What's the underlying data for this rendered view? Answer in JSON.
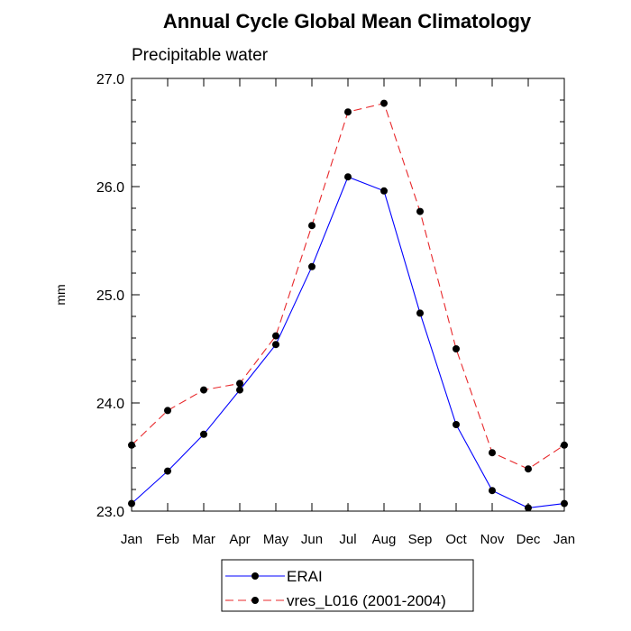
{
  "chart_data": {
    "type": "line",
    "title": "Annual Cycle Global Mean Climatology",
    "subtitle": "Precipitable water",
    "ylabel": "mm",
    "xlabel": "",
    "categories": [
      "Jan",
      "Feb",
      "Mar",
      "Apr",
      "May",
      "Jun",
      "Jul",
      "Aug",
      "Sep",
      "Oct",
      "Nov",
      "Dec",
      "Jan"
    ],
    "ylim": [
      23.0,
      27.0
    ],
    "yticks": [
      "23.0",
      "24.0",
      "25.0",
      "26.0",
      "27.0"
    ],
    "grid": false,
    "legend_position": "bottom-center",
    "series": [
      {
        "name": "ERAI",
        "color": "#0000ff",
        "line_style": "solid",
        "marker": "filled-circle",
        "values": [
          23.07,
          23.37,
          23.71,
          24.12,
          24.54,
          25.26,
          26.09,
          25.96,
          24.83,
          23.8,
          23.19,
          23.03,
          23.07
        ]
      },
      {
        "name": "vres_L016 (2001-2004)",
        "color": "#e8282b",
        "line_style": "dashed",
        "marker": "filled-circle",
        "values": [
          23.61,
          23.93,
          24.12,
          24.18,
          24.62,
          25.64,
          26.69,
          26.77,
          25.77,
          24.5,
          23.54,
          23.39,
          23.61
        ]
      }
    ]
  }
}
